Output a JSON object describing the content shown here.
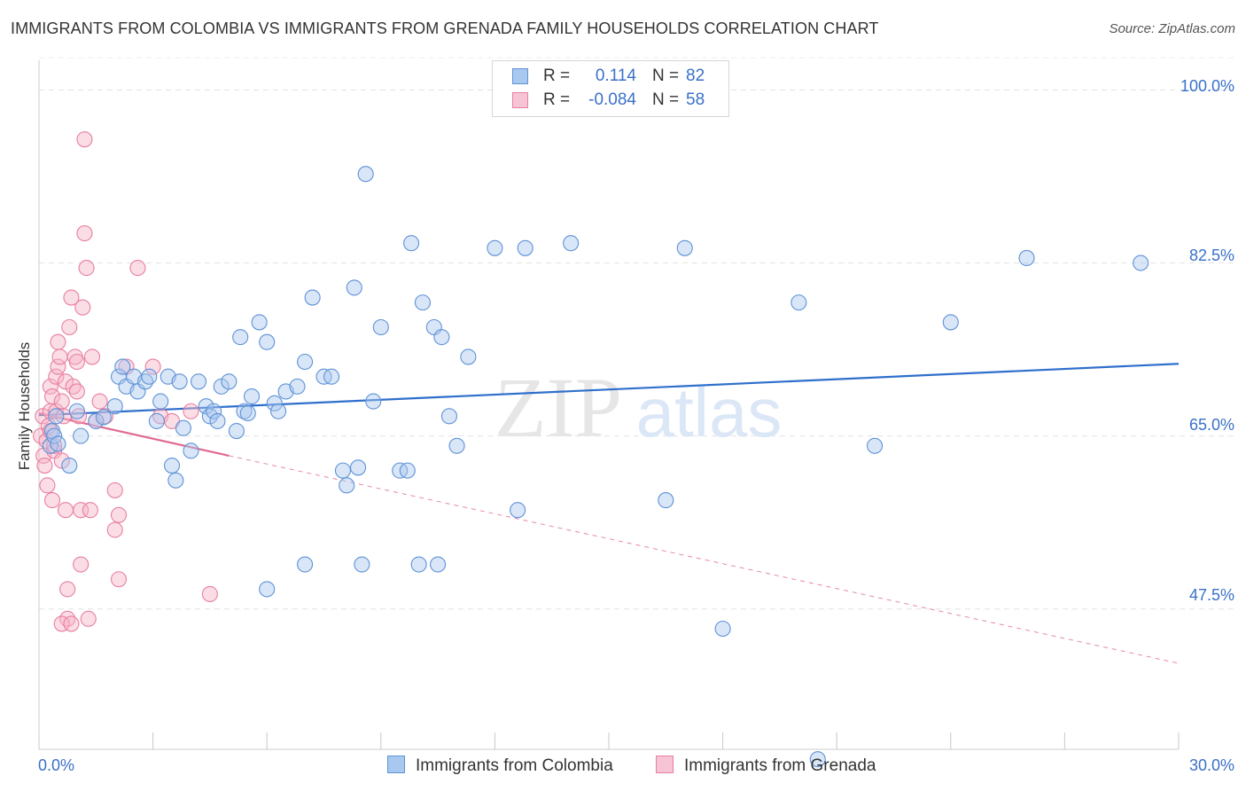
{
  "title": "IMMIGRANTS FROM COLOMBIA VS IMMIGRANTS FROM GRENADA FAMILY HOUSEHOLDS CORRELATION CHART",
  "source": "Source: ZipAtlas.com",
  "watermark": {
    "zip": "ZIP",
    "atlas": "atlas"
  },
  "colors": {
    "colombia_fill": "#a8c8f0",
    "colombia_stroke": "#5f92d6",
    "colombia_line": "#2f6fcc",
    "grenada_fill": "#f6b3c8",
    "grenada_stroke": "#e87fa0",
    "grenada_line": "#e06a92",
    "grid": "#e2e2e2",
    "axis_text": "#3a70c8"
  },
  "legend": {
    "colombia": {
      "r_label": "R =",
      "r_value": "0.114",
      "n_label": "N =",
      "n_value": "82"
    },
    "grenada": {
      "r_label": "R =",
      "r_value": "-0.084",
      "n_label": "N =",
      "n_value": "58"
    }
  },
  "chart_data": {
    "type": "scatter",
    "title": "IMMIGRANTS FROM COLOMBIA VS IMMIGRANTS FROM GRENADA FAMILY HOUSEHOLDS CORRELATION CHART",
    "xlabel": "",
    "ylabel": "Family Households",
    "xlim": [
      0,
      30
    ],
    "ylim": [
      33.3,
      103
    ],
    "x_tick_labels": [
      "0.0%",
      "30.0%"
    ],
    "x_tick_values": [
      0,
      30
    ],
    "y_tick_labels": [
      "100.0%",
      "82.5%",
      "65.0%",
      "47.5%"
    ],
    "y_tick_values": [
      100,
      82.5,
      65,
      47.5
    ],
    "grid": true,
    "legend_position": "top-center",
    "series": [
      {
        "name": "Immigrants from Colombia",
        "trend": {
          "x0": 0.0,
          "y0": 67.1,
          "x1": 30.0,
          "y1": 72.3,
          "dashed_until": null
        },
        "points": [
          [
            0.3,
            64.0
          ],
          [
            0.35,
            65.5
          ],
          [
            0.4,
            65.0
          ],
          [
            0.45,
            67.0
          ],
          [
            0.5,
            64.2
          ],
          [
            0.8,
            62.0
          ],
          [
            1.0,
            67.5
          ],
          [
            1.1,
            65.0
          ],
          [
            1.5,
            66.5
          ],
          [
            1.7,
            66.9
          ],
          [
            2.0,
            68.0
          ],
          [
            2.1,
            71.0
          ],
          [
            2.2,
            72.0
          ],
          [
            2.3,
            70.0
          ],
          [
            2.5,
            71.0
          ],
          [
            2.6,
            69.5
          ],
          [
            2.8,
            70.5
          ],
          [
            2.9,
            71.0
          ],
          [
            3.1,
            66.5
          ],
          [
            3.2,
            68.5
          ],
          [
            3.4,
            71.0
          ],
          [
            3.5,
            62.0
          ],
          [
            3.6,
            60.5
          ],
          [
            3.7,
            70.5
          ],
          [
            3.8,
            65.8
          ],
          [
            4.0,
            63.5
          ],
          [
            4.2,
            70.5
          ],
          [
            4.4,
            68.0
          ],
          [
            4.5,
            67.0
          ],
          [
            4.6,
            67.5
          ],
          [
            4.7,
            66.5
          ],
          [
            4.8,
            70.0
          ],
          [
            5.0,
            70.5
          ],
          [
            5.2,
            65.5
          ],
          [
            5.3,
            75.0
          ],
          [
            5.4,
            67.5
          ],
          [
            5.5,
            67.3
          ],
          [
            5.6,
            69.0
          ],
          [
            5.8,
            76.5
          ],
          [
            6.0,
            74.5
          ],
          [
            6.2,
            68.3
          ],
          [
            6.3,
            67.5
          ],
          [
            6.5,
            69.5
          ],
          [
            6.8,
            70.0
          ],
          [
            7.0,
            72.5
          ],
          [
            7.2,
            79.0
          ],
          [
            7.5,
            71.0
          ],
          [
            7.7,
            71.0
          ],
          [
            8.0,
            61.5
          ],
          [
            8.1,
            60.0
          ],
          [
            8.3,
            80.0
          ],
          [
            8.4,
            61.8
          ],
          [
            8.6,
            91.5
          ],
          [
            8.8,
            68.5
          ],
          [
            9.0,
            76.0
          ],
          [
            9.5,
            61.5
          ],
          [
            9.7,
            61.5
          ],
          [
            9.8,
            84.5
          ],
          [
            10.1,
            78.5
          ],
          [
            10.4,
            76.0
          ],
          [
            10.6,
            75.0
          ],
          [
            10.8,
            67.0
          ],
          [
            11.0,
            64.0
          ],
          [
            11.3,
            73.0
          ],
          [
            12.0,
            84.0
          ],
          [
            12.6,
            57.5
          ],
          [
            12.8,
            84.0
          ],
          [
            14.0,
            84.5
          ],
          [
            16.5,
            58.5
          ],
          [
            17.0,
            84.0
          ],
          [
            18.0,
            45.5
          ],
          [
            20.0,
            78.5
          ],
          [
            20.5,
            32.3
          ],
          [
            22.0,
            64.0
          ],
          [
            24.0,
            76.5
          ],
          [
            26.0,
            83.0
          ],
          [
            29.0,
            82.5
          ],
          [
            7.0,
            52.0
          ],
          [
            8.5,
            52.0
          ],
          [
            10.0,
            52.0
          ],
          [
            10.5,
            52.0
          ],
          [
            6.0,
            49.5
          ]
        ]
      },
      {
        "name": "Immigrants from Grenada",
        "trend": {
          "x0": 0.0,
          "y0": 67.3,
          "x1": 5.0,
          "y1": 63.0,
          "dashed_until": 30.0,
          "dashed_y_end": 42.0
        },
        "points": [
          [
            0.05,
            65.0
          ],
          [
            0.1,
            67.0
          ],
          [
            0.12,
            63.0
          ],
          [
            0.15,
            62.0
          ],
          [
            0.2,
            64.5
          ],
          [
            0.22,
            60.0
          ],
          [
            0.25,
            66.0
          ],
          [
            0.3,
            67.5
          ],
          [
            0.3,
            70.0
          ],
          [
            0.35,
            69.0
          ],
          [
            0.35,
            58.5
          ],
          [
            0.4,
            63.5
          ],
          [
            0.4,
            64.0
          ],
          [
            0.45,
            67.5
          ],
          [
            0.45,
            71.0
          ],
          [
            0.5,
            72.0
          ],
          [
            0.5,
            74.5
          ],
          [
            0.55,
            73.0
          ],
          [
            0.6,
            62.5
          ],
          [
            0.6,
            68.5
          ],
          [
            0.65,
            67.0
          ],
          [
            0.7,
            70.5
          ],
          [
            0.7,
            57.5
          ],
          [
            0.75,
            49.5
          ],
          [
            0.75,
            46.5
          ],
          [
            0.8,
            76.0
          ],
          [
            0.85,
            79.0
          ],
          [
            0.9,
            70.0
          ],
          [
            0.95,
            73.0
          ],
          [
            1.0,
            72.5
          ],
          [
            1.0,
            69.5
          ],
          [
            1.05,
            67.0
          ],
          [
            1.1,
            52.0
          ],
          [
            1.1,
            57.5
          ],
          [
            1.15,
            78.0
          ],
          [
            1.2,
            95.0
          ],
          [
            1.2,
            85.5
          ],
          [
            1.25,
            82.0
          ],
          [
            1.3,
            46.5
          ],
          [
            1.35,
            57.5
          ],
          [
            1.4,
            73.0
          ],
          [
            1.5,
            66.5
          ],
          [
            1.6,
            68.5
          ],
          [
            2.0,
            59.5
          ],
          [
            2.0,
            55.5
          ],
          [
            2.1,
            57.0
          ],
          [
            2.1,
            50.5
          ],
          [
            2.3,
            72.0
          ],
          [
            2.6,
            82.0
          ],
          [
            3.0,
            72.0
          ],
          [
            3.2,
            67.0
          ],
          [
            3.5,
            66.5
          ],
          [
            4.0,
            67.5
          ],
          [
            4.5,
            49.0
          ],
          [
            0.6,
            46.0
          ],
          [
            0.85,
            46.0
          ],
          [
            1.75,
            67.0
          ],
          [
            0.3,
            65.5
          ]
        ]
      }
    ]
  },
  "bottom_legend": {
    "colombia_label": "Immigrants from Colombia",
    "grenada_label": "Immigrants from Grenada"
  }
}
